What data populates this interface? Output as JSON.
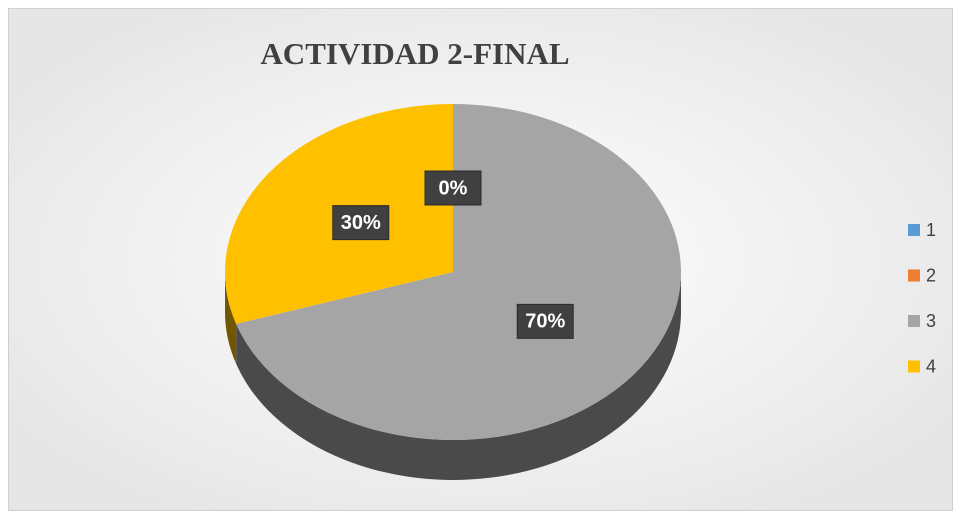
{
  "chart_data": {
    "type": "pie",
    "title": "ACTIVIDAD 2-FINAL",
    "categories": [
      "1",
      "2",
      "3",
      "4"
    ],
    "values": [
      0,
      0,
      70,
      30
    ],
    "value_labels": [
      "0%",
      "0%",
      "70%",
      "30%"
    ],
    "colors": [
      "#5b9bd5",
      "#ed7d31",
      "#a5a5a5",
      "#ffc000"
    ],
    "legend": "right"
  }
}
